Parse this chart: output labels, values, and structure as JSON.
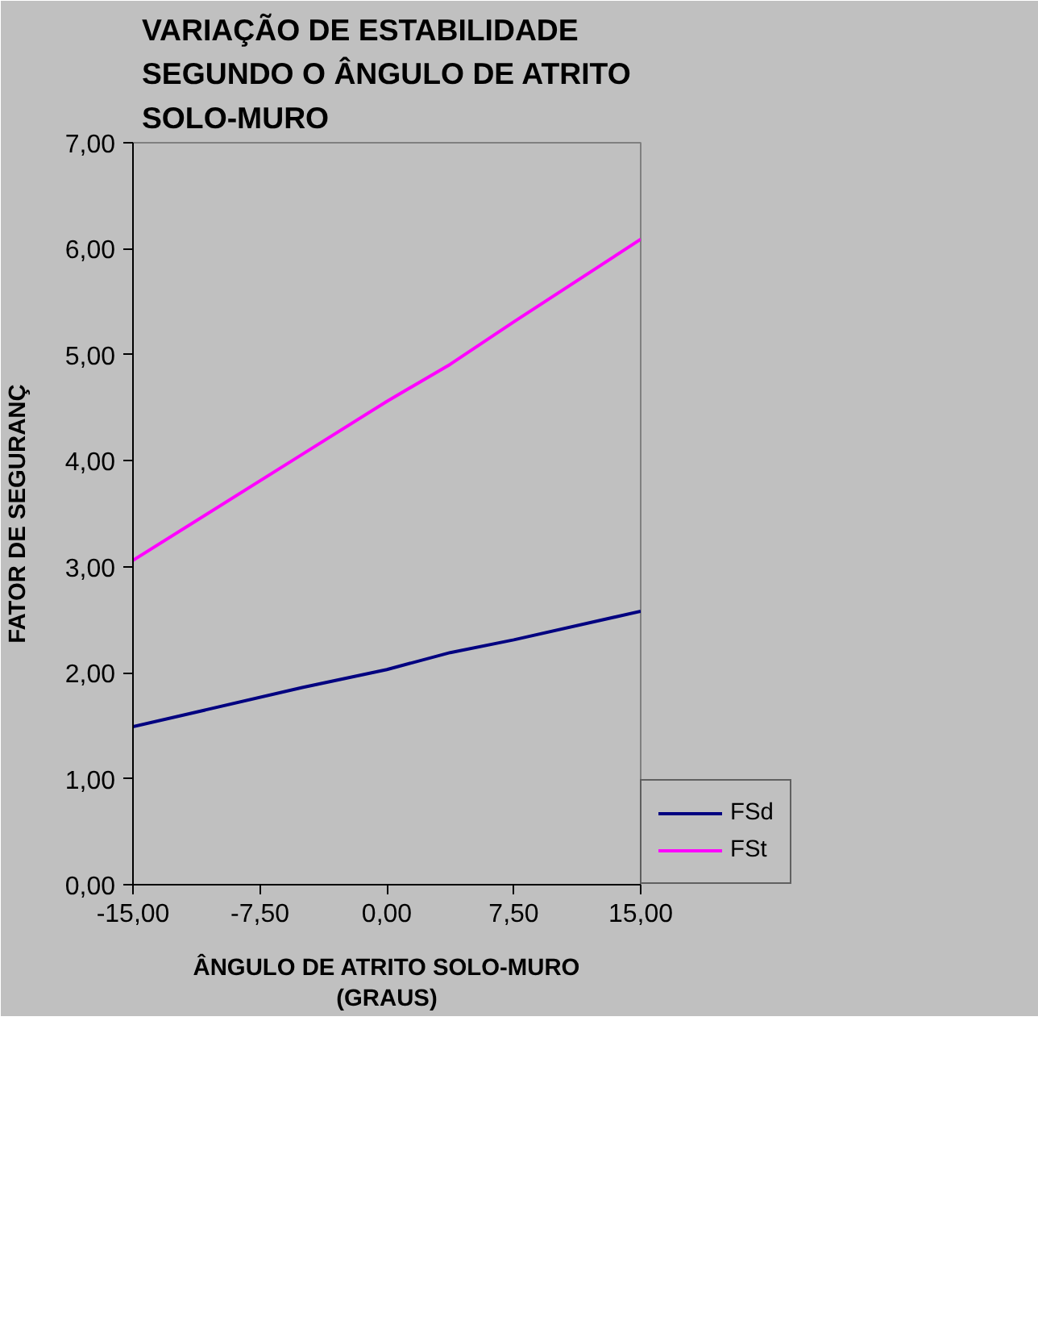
{
  "chart_data": {
    "type": "line",
    "title": "VARIAÇÃO DE ESTABILIDADE\nSEGUNDO O ÂNGULO DE ATRITO\nSOLO-MURO",
    "xlabel": "ÂNGULO DE ATRITO SOLO-MURO\n(GRAUS)",
    "ylabel": "FATOR DE SEGURANÇ",
    "x": [
      -15,
      -5,
      0,
      3.75,
      7.5,
      15
    ],
    "series": [
      {
        "name": "FSd",
        "color": "#000080",
        "values": [
          1.49,
          1.86,
          2.03,
          2.19,
          2.31,
          2.58
        ]
      },
      {
        "name": "FSt",
        "color": "#ff00ff",
        "values": [
          3.06,
          4.06,
          4.56,
          4.91,
          5.31,
          6.09
        ]
      }
    ],
    "xlim": [
      -15,
      15
    ],
    "xticks": [
      {
        "value": -15,
        "label": "-15,00"
      },
      {
        "value": -7.5,
        "label": "-7,50"
      },
      {
        "value": 0,
        "label": "0,00"
      },
      {
        "value": 7.5,
        "label": "7,50"
      },
      {
        "value": 15,
        "label": "15,00"
      }
    ],
    "ylim": [
      0,
      7
    ],
    "yticks": [
      {
        "value": 0,
        "label": "0,00"
      },
      {
        "value": 1,
        "label": "1,00"
      },
      {
        "value": 2,
        "label": "2,00"
      },
      {
        "value": 3,
        "label": "3,00"
      },
      {
        "value": 4,
        "label": "4,00"
      },
      {
        "value": 5,
        "label": "5,00"
      },
      {
        "value": 6,
        "label": "6,00"
      },
      {
        "value": 7,
        "label": "7,00"
      }
    ],
    "grid": false,
    "legend": "right",
    "marker": "none",
    "line_style": "solid"
  }
}
